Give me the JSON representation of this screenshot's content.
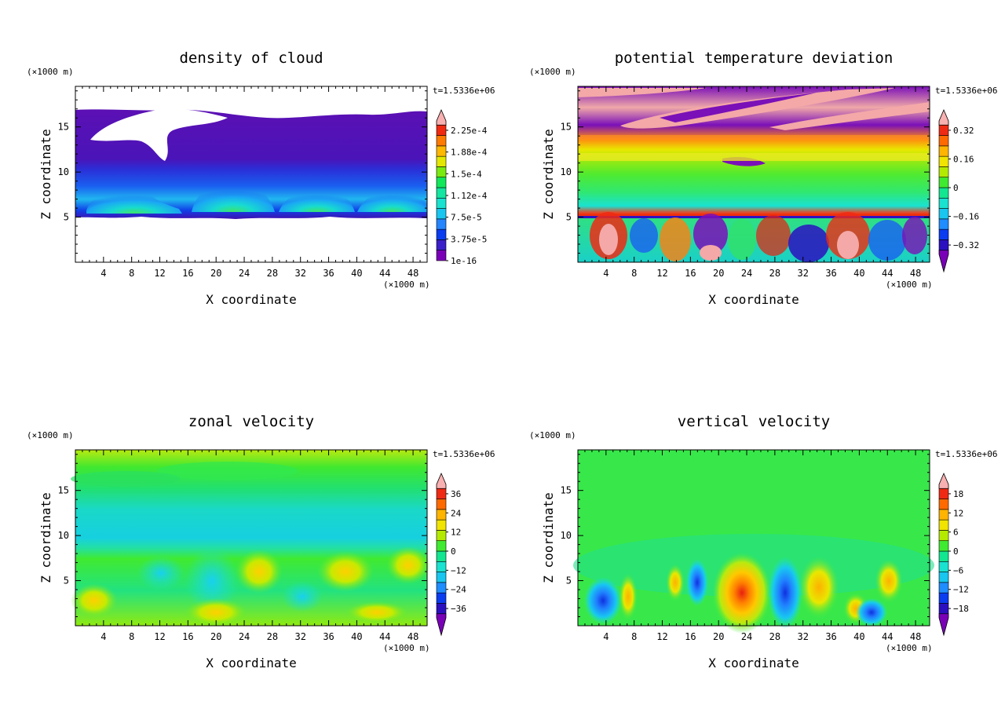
{
  "chart_data": [
    {
      "type": "heatmap",
      "title": "density of cloud",
      "xlabel": "X coordinate",
      "ylabel": "Z coordinate",
      "x_unit": "(×1000 m)",
      "y_unit": "(×1000 m)",
      "time_label": "t=1.5336e+06",
      "xlim": [
        0,
        50
      ],
      "ylim": [
        0,
        19.5
      ],
      "xticks": [
        "4",
        "8",
        "12",
        "16",
        "20",
        "24",
        "28",
        "32",
        "36",
        "40",
        "44",
        "48"
      ],
      "yticks": [
        "5",
        "10",
        "15"
      ],
      "colorbar": {
        "labels": [
          "2.25e-4",
          "1.88e-4",
          "1.5e-4",
          "1.12e-4",
          "7.5e-5",
          "3.75e-5",
          "1e-16"
        ],
        "colors": [
          "#7a00b8",
          "#3b1fc8",
          "#0a3cf0",
          "#2585ff",
          "#18c6f0",
          "#1ae2d0",
          "#12e6a0",
          "#10e85a",
          "#7aeb10",
          "#e4e800",
          "#ffb800",
          "#ff7a00",
          "#f02a10",
          "#f8b0b0"
        ],
        "min_arrow": false,
        "max_arrow": true
      }
    },
    {
      "type": "heatmap",
      "title": "potential temperature deviation",
      "xlabel": "X coordinate",
      "ylabel": "Z coordinate",
      "x_unit": "(×1000 m)",
      "y_unit": "(×1000 m)",
      "time_label": "t=1.5336e+06",
      "xlim": [
        0,
        50
      ],
      "ylim": [
        0,
        19.5
      ],
      "xticks": [
        "4",
        "8",
        "12",
        "16",
        "20",
        "24",
        "28",
        "32",
        "36",
        "40",
        "44",
        "48"
      ],
      "yticks": [
        "5",
        "10",
        "15"
      ],
      "colorbar": {
        "labels": [
          "0.32",
          "0.16",
          "0",
          "−0.16",
          "−0.32"
        ],
        "colors": [
          "#7a00b8",
          "#2b10c0",
          "#0a3cf0",
          "#1f8cff",
          "#18c6f0",
          "#1ae2d0",
          "#12e690",
          "#40ea30",
          "#b4ea00",
          "#f0e400",
          "#ffb400",
          "#ff6a00",
          "#ef2a14",
          "#f8b0b0"
        ],
        "min_arrow": true,
        "max_arrow": true
      }
    },
    {
      "type": "heatmap",
      "title": "zonal velocity",
      "xlabel": "X coordinate",
      "ylabel": "Z coordinate",
      "x_unit": "(×1000 m)",
      "y_unit": "(×1000 m)",
      "time_label": "t=1.5336e+06",
      "xlim": [
        0,
        50
      ],
      "ylim": [
        0,
        19.5
      ],
      "xticks": [
        "4",
        "8",
        "12",
        "16",
        "20",
        "24",
        "28",
        "32",
        "36",
        "40",
        "44",
        "48"
      ],
      "yticks": [
        "5",
        "10",
        "15"
      ],
      "colorbar": {
        "labels": [
          "36",
          "24",
          "12",
          "0",
          "−12",
          "−24",
          "−36"
        ],
        "colors": [
          "#7a00b8",
          "#2b10c0",
          "#0a3cf0",
          "#1f8cff",
          "#18c6f0",
          "#1ae2d0",
          "#12e690",
          "#40ea30",
          "#b4ea00",
          "#f0e400",
          "#ffb400",
          "#ff6a00",
          "#ef2a14",
          "#f8b0b0"
        ],
        "min_arrow": true,
        "max_arrow": true
      }
    },
    {
      "type": "heatmap",
      "title": "vertical velocity",
      "xlabel": "X coordinate",
      "ylabel": "Z coordinate",
      "x_unit": "(×1000 m)",
      "y_unit": "(×1000 m)",
      "time_label": "t=1.5336e+06",
      "xlim": [
        0,
        50
      ],
      "ylim": [
        0,
        19.5
      ],
      "xticks": [
        "4",
        "8",
        "12",
        "16",
        "20",
        "24",
        "28",
        "32",
        "36",
        "40",
        "44",
        "48"
      ],
      "yticks": [
        "5",
        "10",
        "15"
      ],
      "colorbar": {
        "labels": [
          "18",
          "12",
          "6",
          "0",
          "−6",
          "−12",
          "−18"
        ],
        "colors": [
          "#7a00b8",
          "#2b10c0",
          "#0a3cf0",
          "#1f8cff",
          "#18c6f0",
          "#1ae2d0",
          "#12e690",
          "#40ea30",
          "#b4ea00",
          "#f0e400",
          "#ffb400",
          "#ff6a00",
          "#ef2a14",
          "#f8b0b0"
        ],
        "min_arrow": true,
        "max_arrow": true
      }
    }
  ]
}
